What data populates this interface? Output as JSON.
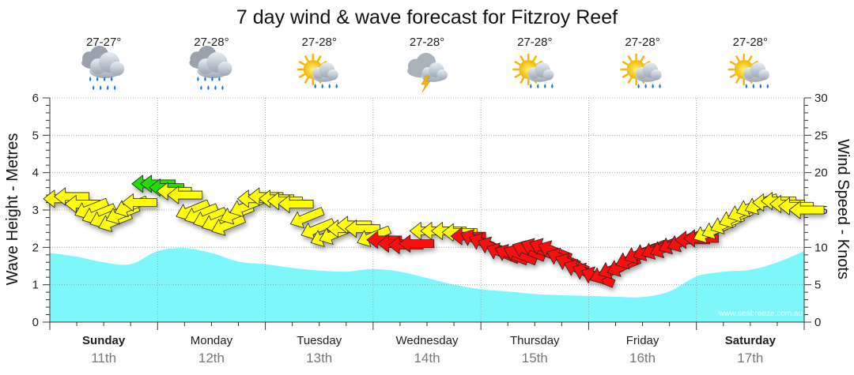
{
  "chart_data": {
    "type": "area",
    "title": "7 day wind & wave forecast for Fitzroy Reef",
    "ylabel_left": "Wave Height - Metres",
    "ylabel_right": "Wind Speed - Knots",
    "ylim_left": [
      0,
      6
    ],
    "ylim_right": [
      0,
      30
    ],
    "yticks_left": [
      "0",
      "1",
      "2",
      "3",
      "4",
      "5",
      "6"
    ],
    "yticks_right": [
      "0",
      "5",
      "10",
      "15",
      "20",
      "25",
      "30"
    ],
    "grid": true,
    "watermark": "www.seabreeze.com.au",
    "days": [
      {
        "name": "Sunday",
        "date": "11th",
        "weekend": true,
        "temp": "27-27°",
        "icon": "rain-cloud-icon"
      },
      {
        "name": "Monday",
        "date": "12th",
        "weekend": false,
        "temp": "27-28°",
        "icon": "rain-cloud-icon"
      },
      {
        "name": "Tuesday",
        "date": "13th",
        "weekend": false,
        "temp": "27-28°",
        "icon": "sun-shower-icon"
      },
      {
        "name": "Wednesday",
        "date": "14th",
        "weekend": false,
        "temp": "27-28°",
        "icon": "thunderstorm-icon"
      },
      {
        "name": "Thursday",
        "date": "15th",
        "weekend": false,
        "temp": "27-28°",
        "icon": "sun-shower-icon"
      },
      {
        "name": "Friday",
        "date": "16th",
        "weekend": false,
        "temp": "27-28°",
        "icon": "sun-shower-icon"
      },
      {
        "name": "Saturday",
        "date": "17th",
        "weekend": true,
        "temp": "27-28°",
        "icon": "sun-shower-icon"
      }
    ],
    "wave_height": {
      "t": [
        0,
        0.25,
        0.5,
        0.75,
        1.0,
        1.25,
        1.5,
        1.75,
        2.0,
        2.25,
        2.5,
        2.75,
        3.0,
        3.25,
        3.5,
        3.75,
        4.0,
        4.25,
        4.5,
        4.75,
        5.0,
        5.25,
        5.5,
        5.75,
        6.0,
        6.25,
        6.5,
        6.75,
        7.0
      ],
      "m": [
        1.85,
        1.75,
        1.6,
        1.55,
        1.9,
        1.98,
        1.85,
        1.62,
        1.55,
        1.45,
        1.38,
        1.35,
        1.42,
        1.35,
        1.18,
        1.0,
        0.88,
        0.82,
        0.75,
        0.72,
        0.7,
        0.68,
        0.67,
        0.82,
        1.22,
        1.35,
        1.4,
        1.6,
        1.9
      ]
    },
    "wind_arrows": [
      {
        "t": 0.0,
        "kt": 16.5,
        "dir": "e",
        "color": "yellow"
      },
      {
        "t": 0.1,
        "kt": 16.8,
        "dir": "e",
        "color": "yellow"
      },
      {
        "t": 0.2,
        "kt": 15.8,
        "dir": "e",
        "color": "yellow"
      },
      {
        "t": 0.28,
        "kt": 15.2,
        "dir": "ne",
        "color": "yellow"
      },
      {
        "t": 0.35,
        "kt": 14.5,
        "dir": "ne",
        "color": "yellow"
      },
      {
        "t": 0.42,
        "kt": 14.0,
        "dir": "ne",
        "color": "yellow"
      },
      {
        "t": 0.5,
        "kt": 13.5,
        "dir": "ne",
        "color": "yellow"
      },
      {
        "t": 0.57,
        "kt": 14.5,
        "dir": "ne",
        "color": "yellow"
      },
      {
        "t": 0.65,
        "kt": 15.5,
        "dir": "ne",
        "color": "yellow"
      },
      {
        "t": 0.73,
        "kt": 16.0,
        "dir": "e",
        "color": "yellow"
      },
      {
        "t": 0.82,
        "kt": 18.5,
        "dir": "e",
        "color": "green"
      },
      {
        "t": 0.9,
        "kt": 18.5,
        "dir": "e",
        "color": "green"
      },
      {
        "t": 0.98,
        "kt": 18.0,
        "dir": "e",
        "color": "green"
      },
      {
        "t": 1.05,
        "kt": 17.5,
        "dir": "e",
        "color": "yellow"
      },
      {
        "t": 1.15,
        "kt": 17.0,
        "dir": "e",
        "color": "yellow"
      },
      {
        "t": 1.22,
        "kt": 15.0,
        "dir": "ne",
        "color": "yellow"
      },
      {
        "t": 1.3,
        "kt": 14.5,
        "dir": "ne",
        "color": "yellow"
      },
      {
        "t": 1.38,
        "kt": 14.0,
        "dir": "ne",
        "color": "yellow"
      },
      {
        "t": 1.46,
        "kt": 13.5,
        "dir": "ne",
        "color": "yellow"
      },
      {
        "t": 1.55,
        "kt": 13.0,
        "dir": "ne",
        "color": "yellow"
      },
      {
        "t": 1.63,
        "kt": 14.5,
        "dir": "ne",
        "color": "yellow"
      },
      {
        "t": 1.72,
        "kt": 15.5,
        "dir": "ne",
        "color": "yellow"
      },
      {
        "t": 1.8,
        "kt": 16.5,
        "dir": "e",
        "color": "yellow"
      },
      {
        "t": 1.9,
        "kt": 16.8,
        "dir": "e",
        "color": "yellow"
      },
      {
        "t": 2.0,
        "kt": 16.5,
        "dir": "e",
        "color": "yellow"
      },
      {
        "t": 2.08,
        "kt": 16.2,
        "dir": "e",
        "color": "yellow"
      },
      {
        "t": 2.18,
        "kt": 15.8,
        "dir": "e",
        "color": "yellow"
      },
      {
        "t": 2.28,
        "kt": 14.0,
        "dir": "ne",
        "color": "yellow"
      },
      {
        "t": 2.38,
        "kt": 12.5,
        "dir": "ne",
        "color": "yellow"
      },
      {
        "t": 2.47,
        "kt": 11.5,
        "dir": "ne",
        "color": "yellow"
      },
      {
        "t": 2.55,
        "kt": 11.8,
        "dir": "ne",
        "color": "yellow"
      },
      {
        "t": 2.63,
        "kt": 12.5,
        "dir": "e",
        "color": "yellow"
      },
      {
        "t": 2.72,
        "kt": 13.0,
        "dir": "e",
        "color": "yellow"
      },
      {
        "t": 2.8,
        "kt": 12.5,
        "dir": "e",
        "color": "yellow"
      },
      {
        "t": 2.9,
        "kt": 11.5,
        "dir": "ne",
        "color": "yellow"
      },
      {
        "t": 3.0,
        "kt": 11.0,
        "dir": "e",
        "color": "red"
      },
      {
        "t": 3.1,
        "kt": 10.5,
        "dir": "e",
        "color": "red"
      },
      {
        "t": 3.2,
        "kt": 10.3,
        "dir": "e",
        "color": "red"
      },
      {
        "t": 3.3,
        "kt": 10.5,
        "dir": "e",
        "color": "red"
      },
      {
        "t": 3.4,
        "kt": 12.2,
        "dir": "e",
        "color": "yellow"
      },
      {
        "t": 3.5,
        "kt": 12.2,
        "dir": "e",
        "color": "yellow"
      },
      {
        "t": 3.6,
        "kt": 12.2,
        "dir": "e",
        "color": "yellow"
      },
      {
        "t": 3.7,
        "kt": 12.0,
        "dir": "e",
        "color": "yellow"
      },
      {
        "t": 3.78,
        "kt": 11.5,
        "dir": "e",
        "color": "red"
      },
      {
        "t": 3.86,
        "kt": 11.0,
        "dir": "se",
        "color": "red"
      },
      {
        "t": 3.94,
        "kt": 10.5,
        "dir": "se",
        "color": "red"
      },
      {
        "t": 4.02,
        "kt": 10.0,
        "dir": "se",
        "color": "red"
      },
      {
        "t": 4.1,
        "kt": 9.2,
        "dir": "se",
        "color": "red"
      },
      {
        "t": 4.18,
        "kt": 9.0,
        "dir": "se",
        "color": "red"
      },
      {
        "t": 4.26,
        "kt": 9.0,
        "dir": "se",
        "color": "red"
      },
      {
        "t": 4.34,
        "kt": 9.5,
        "dir": "se",
        "color": "red"
      },
      {
        "t": 4.42,
        "kt": 9.8,
        "dir": "se",
        "color": "red"
      },
      {
        "t": 4.5,
        "kt": 9.8,
        "dir": "se",
        "color": "red"
      },
      {
        "t": 4.58,
        "kt": 9.5,
        "dir": "se",
        "color": "red"
      },
      {
        "t": 4.66,
        "kt": 8.5,
        "dir": "se",
        "color": "red"
      },
      {
        "t": 4.74,
        "kt": 7.8,
        "dir": "se",
        "color": "red"
      },
      {
        "t": 4.82,
        "kt": 7.0,
        "dir": "se",
        "color": "red"
      },
      {
        "t": 4.9,
        "kt": 6.5,
        "dir": "se",
        "color": "red"
      },
      {
        "t": 4.98,
        "kt": 6.0,
        "dir": "se",
        "color": "red"
      },
      {
        "t": 5.06,
        "kt": 6.5,
        "dir": "ne",
        "color": "red"
      },
      {
        "t": 5.14,
        "kt": 7.2,
        "dir": "ne",
        "color": "red"
      },
      {
        "t": 5.22,
        "kt": 7.5,
        "dir": "ne",
        "color": "red"
      },
      {
        "t": 5.3,
        "kt": 8.5,
        "dir": "ne",
        "color": "red"
      },
      {
        "t": 5.38,
        "kt": 9.2,
        "dir": "ne",
        "color": "red"
      },
      {
        "t": 5.46,
        "kt": 9.6,
        "dir": "ne",
        "color": "red"
      },
      {
        "t": 5.54,
        "kt": 9.8,
        "dir": "ne",
        "color": "red"
      },
      {
        "t": 5.62,
        "kt": 10.0,
        "dir": "ne",
        "color": "red"
      },
      {
        "t": 5.7,
        "kt": 10.5,
        "dir": "ne",
        "color": "red"
      },
      {
        "t": 5.78,
        "kt": 10.8,
        "dir": "ne",
        "color": "red"
      },
      {
        "t": 5.86,
        "kt": 11.0,
        "dir": "e",
        "color": "red"
      },
      {
        "t": 5.94,
        "kt": 11.2,
        "dir": "e",
        "color": "red"
      },
      {
        "t": 6.02,
        "kt": 12.0,
        "dir": "ne",
        "color": "yellow"
      },
      {
        "t": 6.1,
        "kt": 12.5,
        "dir": "ne",
        "color": "yellow"
      },
      {
        "t": 6.18,
        "kt": 13.2,
        "dir": "ne",
        "color": "yellow"
      },
      {
        "t": 6.26,
        "kt": 14.0,
        "dir": "ne",
        "color": "yellow"
      },
      {
        "t": 6.34,
        "kt": 14.8,
        "dir": "ne",
        "color": "yellow"
      },
      {
        "t": 6.42,
        "kt": 15.5,
        "dir": "ne",
        "color": "yellow"
      },
      {
        "t": 6.5,
        "kt": 15.8,
        "dir": "ne",
        "color": "yellow"
      },
      {
        "t": 6.58,
        "kt": 16.0,
        "dir": "e",
        "color": "yellow"
      },
      {
        "t": 6.66,
        "kt": 16.2,
        "dir": "e",
        "color": "yellow"
      },
      {
        "t": 6.74,
        "kt": 15.8,
        "dir": "e",
        "color": "yellow"
      },
      {
        "t": 6.82,
        "kt": 15.5,
        "dir": "e",
        "color": "yellow"
      },
      {
        "t": 6.92,
        "kt": 15.0,
        "dir": "e",
        "color": "yellow"
      }
    ],
    "colors": {
      "wave_fill": "#7ef7fb",
      "arrow_yellow": "#ffff00",
      "arrow_green": "#22dd00",
      "arrow_red": "#ff1111",
      "grid": "#999999"
    }
  }
}
